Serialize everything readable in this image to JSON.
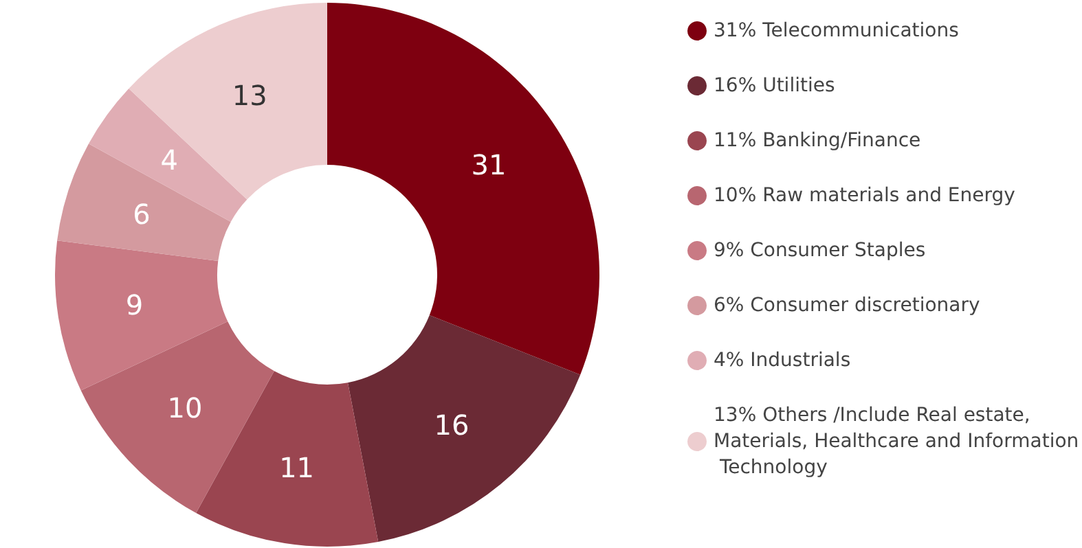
{
  "chart_data": {
    "type": "donut",
    "categories": [
      "31% Telecommunications",
      "16% Utilities",
      "11% Banking/Finance",
      "10% Raw materials and Energy",
      "9% Consumer Staples",
      "6% Consumer discretionary",
      "4% Industrials",
      "13% Others /Include Real estate, Materials, Healthcare and Information Technology"
    ],
    "values": [
      31,
      16,
      11,
      10,
      9,
      6,
      4,
      13
    ],
    "colors": [
      "#7e0010",
      "#6b2a35",
      "#9a4550",
      "#b86670",
      "#c97a84",
      "#d49a9f",
      "#e0adb4",
      "#edcdcf"
    ],
    "data_labels": true,
    "legend": "right"
  }
}
